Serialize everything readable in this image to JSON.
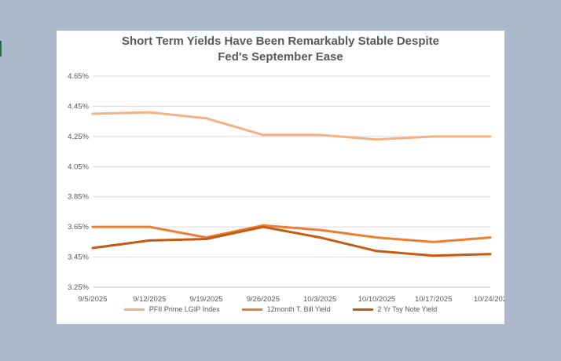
{
  "chart_data": {
    "type": "line",
    "title_lines": [
      "Short Term  Yields Have Been Remarkably Stable  Despite",
      "Fed's September Ease"
    ],
    "categories": [
      "9/5/2025",
      "9/12/2025",
      "9/19/2025",
      "9/26/2025",
      "10/3/2025",
      "10/10/2025",
      "10/17/2025",
      "10/24/202"
    ],
    "y_ticks": [
      "3.25%",
      "3.45%",
      "3.65%",
      "3.85%",
      "4.05%",
      "4.25%",
      "4.45%",
      "4.65%"
    ],
    "ylim": [
      3.25,
      4.65
    ],
    "grid": true,
    "legend_position": "bottom",
    "series": [
      {
        "name": "PFII Prime LGIP Index",
        "color": "#f4b183",
        "values": [
          4.4,
          4.41,
          4.37,
          4.26,
          4.26,
          4.23,
          4.25,
          4.25
        ]
      },
      {
        "name": "12month T. Bill Yield",
        "color": "#ed7d31",
        "values": [
          3.65,
          3.65,
          3.58,
          3.66,
          3.63,
          3.58,
          3.55,
          3.58
        ]
      },
      {
        "name": "2 Yr Tsy Note Yield",
        "color": "#c55a11",
        "values": [
          3.51,
          3.56,
          3.57,
          3.65,
          3.58,
          3.49,
          3.46,
          3.47
        ]
      }
    ]
  }
}
